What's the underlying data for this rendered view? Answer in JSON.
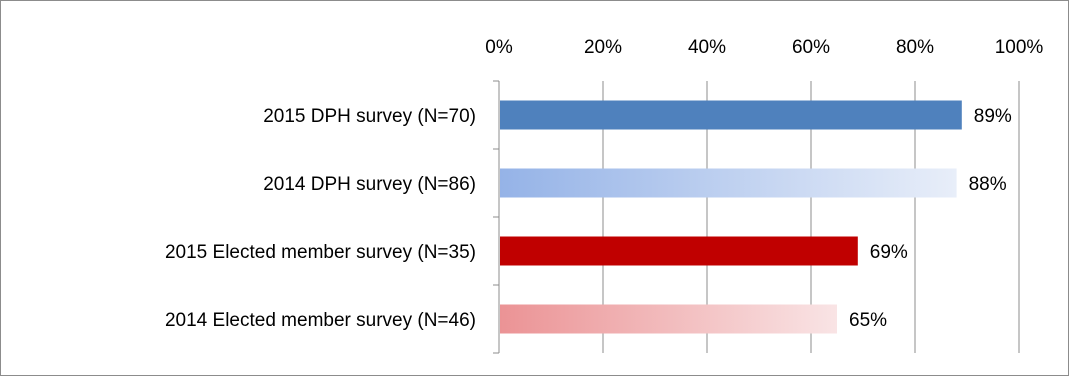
{
  "chart_data": {
    "type": "bar",
    "orientation": "horizontal",
    "title": "",
    "xlabel": "",
    "ylabel": "",
    "xlim": [
      0,
      100
    ],
    "x_ticks": [
      "0%",
      "20%",
      "40%",
      "60%",
      "80%",
      "100%"
    ],
    "x_axis_position": "top",
    "grid": true,
    "legend": "none",
    "categories": [
      "2015 DPH survey (N=70)",
      "2014 DPH survey (N=86)",
      "2015 Elected member survey (N=35)",
      "2014 Elected member survey (N=46)"
    ],
    "values": [
      89,
      88,
      69,
      65
    ],
    "data_labels": [
      "89%",
      "88%",
      "69%",
      "65%"
    ],
    "colors": [
      {
        "from": "#4f81bd",
        "to": "#4f81bd"
      },
      {
        "from": "#95b3e7",
        "to": "#e8eef9"
      },
      {
        "from": "#c00000",
        "to": "#c00000"
      },
      {
        "from": "#eb9395",
        "to": "#f9e4e5"
      }
    ]
  }
}
